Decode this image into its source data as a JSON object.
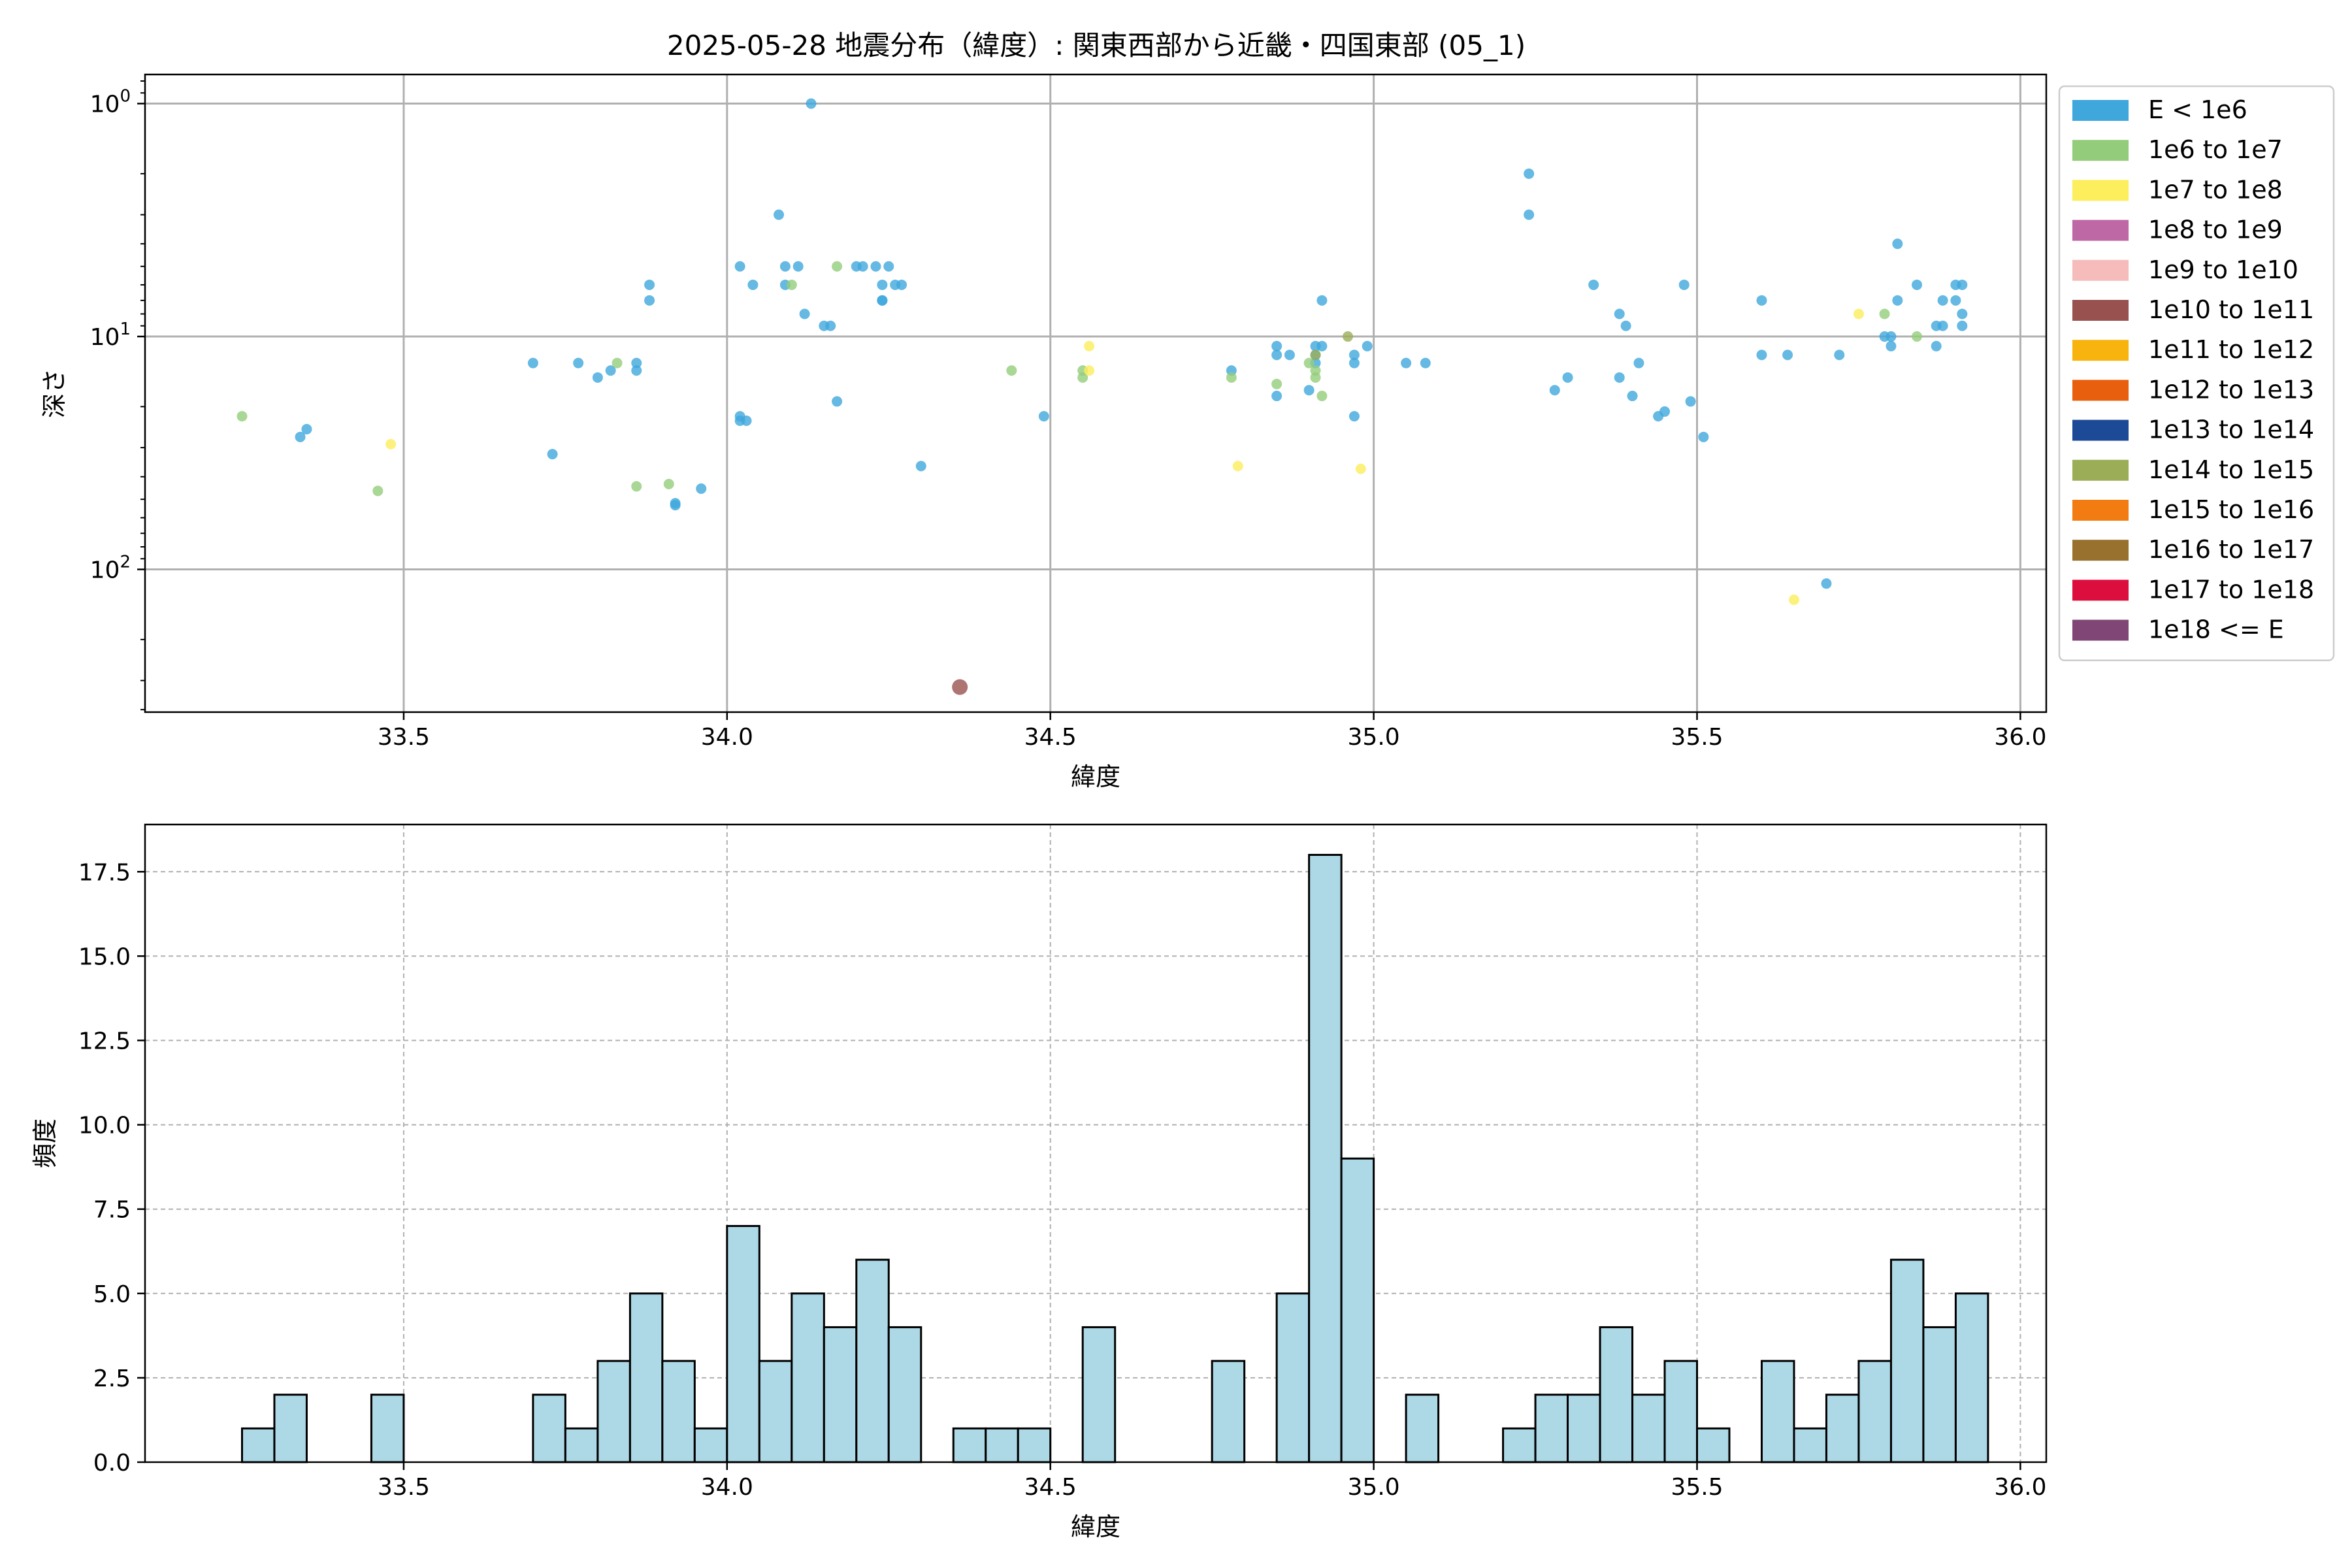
{
  "title": "2025-05-28 地震分布（緯度）: 関東西部から近畿・四国東部 (05_1)",
  "colors": {
    "E < 1e6": "#3fa7dc",
    "1e6 to 1e7": "#93cd7b",
    "1e7 to 1e8": "#fcee5c",
    "1e8 to 1e9": "#bf68a6",
    "1e9 to 1e10": "#f5bcbb",
    "1e10 to 1e11": "#98514f",
    "1e11 to 1e12": "#f8b30e",
    "1e12 to 1e13": "#e8600e",
    "1e13 to 1e14": "#1d4a96",
    "1e14 to 1e15": "#9bae57",
    "1e15 to 1e16": "#f27c12",
    "1e16 to 1e17": "#98712f",
    "1e17 to 1e18": "#dc0e3e",
    "1e18 <= E": "#804675",
    "hist_fill": "#add8e6",
    "grid": "#b0b0b0"
  },
  "chart_data": [
    {
      "type": "scatter",
      "title": "2025-05-28 地震分布（緯度）: 関東西部から近畿・四国東部 (05_1)",
      "xlabel": "緯度",
      "ylabel": "深さ",
      "xlim": [
        33.1,
        36.04
      ],
      "ylim": [
        410,
        0.75
      ],
      "yscale": "log",
      "y_inverted": true,
      "grid": true,
      "legend_position": "outside-right",
      "x_ticks": [
        "33.5",
        "34.0",
        "34.5",
        "35.0",
        "35.5",
        "36.0"
      ],
      "y_ticks": [
        {
          "base": "10",
          "exp": "0",
          "value": 1
        },
        {
          "base": "10",
          "exp": "1",
          "value": 10
        },
        {
          "base": "10",
          "exp": "2",
          "value": 100
        }
      ],
      "legend": [
        "E < 1e6",
        "1e6 to 1e7",
        "1e7 to 1e8",
        "1e8 to 1e9",
        "1e9 to 1e10",
        "1e10 to 1e11",
        "1e11 to 1e12",
        "1e12 to 1e13",
        "1e13 to 1e14",
        "1e14 to 1e15",
        "1e15 to 1e16",
        "1e16 to 1e17",
        "1e17 to 1e18",
        "1e18 <= E"
      ],
      "series": [
        {
          "name": "E < 1e6",
          "points": [
            [
              33.34,
              27
            ],
            [
              33.35,
              25
            ],
            [
              33.7,
              13
            ],
            [
              33.73,
              32
            ],
            [
              33.77,
              13
            ],
            [
              33.8,
              15
            ],
            [
              33.82,
              14
            ],
            [
              33.86,
              13
            ],
            [
              33.86,
              14
            ],
            [
              33.88,
              6
            ],
            [
              33.88,
              7
            ],
            [
              33.92,
              53
            ],
            [
              33.92,
              52
            ],
            [
              33.96,
              45
            ],
            [
              34.02,
              22
            ],
            [
              34.02,
              23
            ],
            [
              34.03,
              23
            ],
            [
              34.02,
              5
            ],
            [
              34.04,
              6
            ],
            [
              34.08,
              3
            ],
            [
              34.09,
              6
            ],
            [
              34.09,
              5
            ],
            [
              34.11,
              5
            ],
            [
              34.12,
              8
            ],
            [
              34.13,
              1
            ],
            [
              34.15,
              9
            ],
            [
              34.16,
              9
            ],
            [
              34.17,
              19
            ],
            [
              34.2,
              5
            ],
            [
              34.21,
              5
            ],
            [
              34.23,
              5
            ],
            [
              34.24,
              6
            ],
            [
              34.24,
              7
            ],
            [
              34.24,
              7
            ],
            [
              34.25,
              5
            ],
            [
              34.26,
              6
            ],
            [
              34.27,
              6
            ],
            [
              34.3,
              36
            ],
            [
              34.49,
              22
            ],
            [
              34.78,
              14
            ],
            [
              34.85,
              11
            ],
            [
              34.85,
              12
            ],
            [
              34.85,
              18
            ],
            [
              34.87,
              12
            ],
            [
              34.9,
              17
            ],
            [
              34.91,
              11
            ],
            [
              34.91,
              12
            ],
            [
              34.92,
              11
            ],
            [
              34.92,
              7
            ],
            [
              34.91,
              13
            ],
            [
              34.97,
              13
            ],
            [
              34.97,
              22
            ],
            [
              34.97,
              12
            ],
            [
              34.99,
              11
            ],
            [
              35.05,
              13
            ],
            [
              35.08,
              13
            ],
            [
              35.24,
              3
            ],
            [
              35.24,
              2
            ],
            [
              35.28,
              17
            ],
            [
              35.3,
              15
            ],
            [
              35.34,
              6
            ],
            [
              35.38,
              8
            ],
            [
              35.38,
              15
            ],
            [
              35.39,
              9
            ],
            [
              35.4,
              18
            ],
            [
              35.41,
              13
            ],
            [
              35.44,
              22
            ],
            [
              35.45,
              21
            ],
            [
              35.48,
              6
            ],
            [
              35.49,
              19
            ],
            [
              35.51,
              27
            ],
            [
              35.6,
              12
            ],
            [
              35.6,
              7
            ],
            [
              35.64,
              12
            ],
            [
              35.7,
              115
            ],
            [
              35.72,
              12
            ],
            [
              35.79,
              10
            ],
            [
              35.8,
              10
            ],
            [
              35.8,
              11
            ],
            [
              35.81,
              4
            ],
            [
              35.81,
              7
            ],
            [
              35.84,
              6
            ],
            [
              35.87,
              9
            ],
            [
              35.87,
              11
            ],
            [
              35.88,
              7
            ],
            [
              35.88,
              9
            ],
            [
              35.9,
              6
            ],
            [
              35.9,
              7
            ],
            [
              35.91,
              8
            ],
            [
              35.91,
              6
            ],
            [
              35.91,
              9
            ]
          ]
        },
        {
          "name": "1e6 to 1e7",
          "points": [
            [
              33.25,
              22
            ],
            [
              33.46,
              46
            ],
            [
              33.83,
              13
            ],
            [
              33.86,
              44
            ],
            [
              33.91,
              43
            ],
            [
              34.1,
              6
            ],
            [
              34.17,
              5
            ],
            [
              34.44,
              14
            ],
            [
              34.55,
              14
            ],
            [
              34.55,
              15
            ],
            [
              34.78,
              15
            ],
            [
              34.85,
              16
            ],
            [
              34.9,
              13
            ],
            [
              34.91,
              14
            ],
            [
              34.91,
              15
            ],
            [
              34.92,
              18
            ],
            [
              35.79,
              8
            ],
            [
              35.84,
              10
            ]
          ]
        },
        {
          "name": "1e7 to 1e8",
          "points": [
            [
              33.48,
              29
            ],
            [
              34.56,
              11
            ],
            [
              34.56,
              14
            ],
            [
              34.79,
              36
            ],
            [
              34.98,
              37
            ],
            [
              35.65,
              135
            ],
            [
              35.75,
              8
            ]
          ]
        },
        {
          "name": "1e10 to 1e11",
          "points": [
            [
              34.36,
              320
            ]
          ]
        },
        {
          "name": "1e14 to 1e15",
          "points": [
            [
              34.91,
              12
            ],
            [
              34.96,
              10
            ]
          ]
        }
      ]
    },
    {
      "type": "bar",
      "title": "",
      "xlabel": "緯度",
      "ylabel": "頻度",
      "xlim": [
        33.1,
        36.04
      ],
      "ylim": [
        0,
        18.9
      ],
      "grid": true,
      "x_ticks": [
        "33.5",
        "34.0",
        "34.5",
        "35.0",
        "35.5",
        "36.0"
      ],
      "y_ticks": [
        "0.0",
        "2.5",
        "5.0",
        "7.5",
        "10.0",
        "12.5",
        "15.0",
        "17.5"
      ],
      "bin_width": 0.05,
      "bins": [
        {
          "x0": 33.25,
          "count": 1
        },
        {
          "x0": 33.3,
          "count": 2
        },
        {
          "x0": 33.45,
          "count": 2
        },
        {
          "x0": 33.7,
          "count": 2
        },
        {
          "x0": 33.75,
          "count": 1
        },
        {
          "x0": 33.8,
          "count": 3
        },
        {
          "x0": 33.85,
          "count": 5
        },
        {
          "x0": 33.9,
          "count": 3
        },
        {
          "x0": 33.95,
          "count": 1
        },
        {
          "x0": 34.0,
          "count": 7
        },
        {
          "x0": 34.05,
          "count": 3
        },
        {
          "x0": 34.1,
          "count": 5
        },
        {
          "x0": 34.15,
          "count": 4
        },
        {
          "x0": 34.2,
          "count": 6
        },
        {
          "x0": 34.25,
          "count": 4
        },
        {
          "x0": 34.35,
          "count": 1
        },
        {
          "x0": 34.4,
          "count": 1
        },
        {
          "x0": 34.45,
          "count": 1
        },
        {
          "x0": 34.55,
          "count": 4
        },
        {
          "x0": 34.75,
          "count": 3
        },
        {
          "x0": 34.85,
          "count": 5
        },
        {
          "x0": 34.9,
          "count": 18
        },
        {
          "x0": 34.95,
          "count": 9
        },
        {
          "x0": 35.05,
          "count": 2
        },
        {
          "x0": 35.2,
          "count": 1
        },
        {
          "x0": 35.25,
          "count": 2
        },
        {
          "x0": 35.3,
          "count": 2
        },
        {
          "x0": 35.35,
          "count": 4
        },
        {
          "x0": 35.4,
          "count": 2
        },
        {
          "x0": 35.45,
          "count": 3
        },
        {
          "x0": 35.5,
          "count": 1
        },
        {
          "x0": 35.6,
          "count": 3
        },
        {
          "x0": 35.65,
          "count": 1
        },
        {
          "x0": 35.7,
          "count": 2
        },
        {
          "x0": 35.75,
          "count": 3
        },
        {
          "x0": 35.8,
          "count": 6
        },
        {
          "x0": 35.85,
          "count": 4
        },
        {
          "x0": 35.9,
          "count": 5
        }
      ]
    }
  ]
}
